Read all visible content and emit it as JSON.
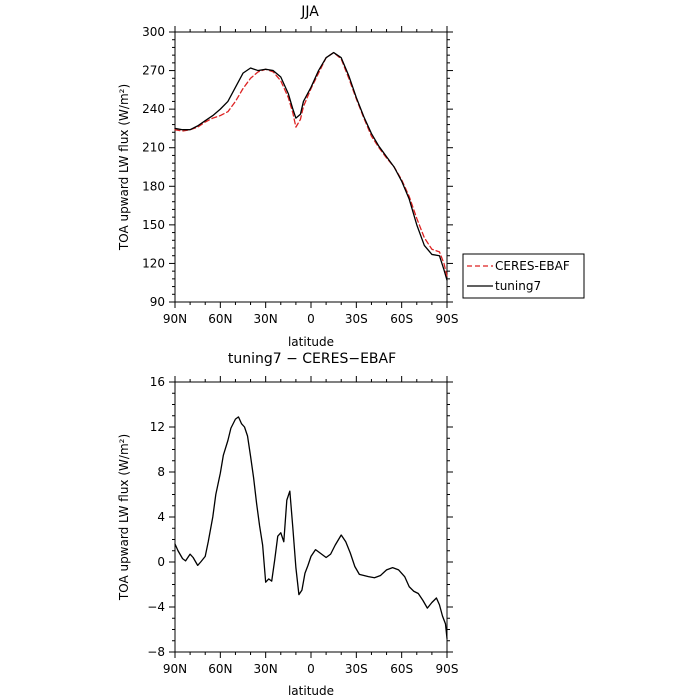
{
  "chart_data": [
    {
      "type": "line",
      "title": "JJA",
      "xlabel": "latitude",
      "ylabel": "TOA upward LW flux (W/m²)",
      "ylim": [
        90,
        300
      ],
      "xlim": [
        90,
        -90
      ],
      "yticks": [
        "90",
        "120",
        "150",
        "180",
        "210",
        "240",
        "270",
        "300"
      ],
      "xticks": [
        "90N",
        "60N",
        "30N",
        "0",
        "30S",
        "60S",
        "90S"
      ],
      "legend": "right",
      "series": [
        {
          "name": "CERES-EBAF",
          "color": "#dd2222",
          "dash": "dashed",
          "x": [
            90,
            85,
            80,
            75,
            70,
            65,
            60,
            55,
            50,
            45,
            40,
            35,
            30,
            25,
            20,
            15,
            12,
            10,
            7,
            5,
            0,
            -5,
            -10,
            -15,
            -20,
            -25,
            -30,
            -35,
            -40,
            -45,
            -50,
            -55,
            -60,
            -65,
            -70,
            -75,
            -80,
            -85,
            -88,
            -90
          ],
          "y": [
            224,
            223,
            224,
            226,
            230,
            233,
            235,
            238,
            246,
            256,
            264,
            269,
            271,
            269,
            262,
            249,
            237,
            226,
            232,
            242,
            256,
            268,
            280,
            284,
            279,
            264,
            248,
            233,
            219,
            210,
            202,
            195,
            185,
            172,
            155,
            140,
            131,
            129,
            120,
            110
          ]
        },
        {
          "name": "tuning7",
          "color": "#000000",
          "dash": "solid",
          "x": [
            90,
            85,
            80,
            75,
            70,
            65,
            60,
            55,
            50,
            45,
            40,
            35,
            30,
            25,
            20,
            15,
            12,
            10,
            7,
            5,
            0,
            -5,
            -10,
            -15,
            -20,
            -25,
            -30,
            -35,
            -40,
            -45,
            -50,
            -55,
            -60,
            -65,
            -70,
            -75,
            -80,
            -85,
            -88,
            -90
          ],
          "y": [
            225,
            224,
            224,
            227,
            231,
            235,
            240,
            246,
            257,
            268,
            272,
            270,
            271,
            270,
            265,
            252,
            240,
            233,
            236,
            246,
            257,
            270,
            280,
            284,
            280,
            266,
            249,
            234,
            221,
            211,
            203,
            195,
            184,
            170,
            150,
            134,
            127,
            126,
            115,
            107
          ]
        }
      ]
    },
    {
      "type": "line",
      "title": "tuning7 − CERES−EBAF",
      "xlabel": "latitude",
      "ylabel": "TOA upward LW flux (W/m²)",
      "ylim": [
        -8,
        16
      ],
      "xlim": [
        90,
        -90
      ],
      "yticks": [
        "−8",
        "−4",
        "0",
        "4",
        "8",
        "12",
        "16"
      ],
      "xticks": [
        "90N",
        "60N",
        "30N",
        "0",
        "30S",
        "60S",
        "90S"
      ],
      "series": [
        {
          "color": "#000000",
          "dash": "solid",
          "x": [
            90,
            88,
            85,
            83,
            80,
            78,
            75,
            73,
            70,
            68,
            65,
            63,
            60,
            58,
            55,
            53,
            50,
            48,
            46,
            44,
            42,
            40,
            38,
            36,
            34,
            32,
            30,
            28,
            26,
            24,
            22,
            20,
            18,
            16,
            14,
            12,
            10,
            8,
            6,
            4,
            2,
            0,
            -3,
            -6,
            -10,
            -13,
            -16,
            -20,
            -23,
            -26,
            -29,
            -32,
            -35,
            -38,
            -42,
            -46,
            -50,
            -54,
            -58,
            -62,
            -65,
            -68,
            -71,
            -74,
            -77,
            -80,
            -83,
            -85,
            -87,
            -89,
            -90
          ],
          "y": [
            1.6,
            1.0,
            0.3,
            0.1,
            0.7,
            0.4,
            -0.3,
            0.0,
            0.5,
            1.8,
            4.0,
            6.0,
            7.9,
            9.5,
            10.8,
            11.9,
            12.7,
            12.9,
            12.3,
            12.0,
            11.2,
            9.4,
            7.5,
            5.2,
            3.2,
            1.5,
            -1.8,
            -1.5,
            -1.7,
            0.2,
            2.3,
            2.6,
            1.8,
            5.5,
            6.3,
            3.0,
            -0.5,
            -2.9,
            -2.5,
            -1.0,
            -0.3,
            0.5,
            1.1,
            0.8,
            0.4,
            0.7,
            1.5,
            2.4,
            1.8,
            0.8,
            -0.4,
            -1.1,
            -1.2,
            -1.3,
            -1.4,
            -1.2,
            -0.7,
            -0.5,
            -0.7,
            -1.3,
            -2.2,
            -2.6,
            -2.8,
            -3.4,
            -4.1,
            -3.6,
            -3.2,
            -3.8,
            -4.8,
            -5.5,
            -6.8
          ]
        }
      ]
    }
  ]
}
